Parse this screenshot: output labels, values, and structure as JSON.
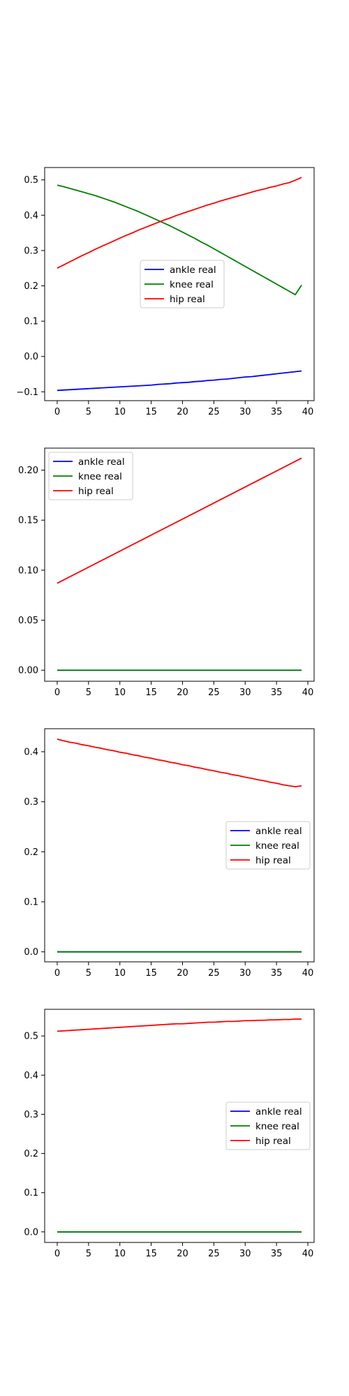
{
  "chart_data": [
    {
      "type": "line",
      "x": {
        "start": 0,
        "end": 39,
        "points": 40
      },
      "xlim": [
        -2,
        41
      ],
      "ylim": [
        -0.125,
        0.535
      ],
      "xticks": [
        0,
        5,
        10,
        15,
        20,
        25,
        30,
        35,
        40
      ],
      "yticks": [
        -0.1,
        0.0,
        0.1,
        0.2,
        0.3,
        0.4,
        0.5
      ],
      "ytick_labels": [
        "−0.1",
        "0.0",
        "0.1",
        "0.2",
        "0.3",
        "0.4",
        "0.5"
      ],
      "legend_position": "center",
      "series": [
        {
          "name": "ankle real",
          "color": "#0000ff",
          "values": [
            -0.096,
            -0.095,
            -0.094,
            -0.093,
            -0.092,
            -0.091,
            -0.09,
            -0.089,
            -0.088,
            -0.087,
            -0.086,
            -0.085,
            -0.084,
            -0.083,
            -0.082,
            -0.081,
            -0.079,
            -0.078,
            -0.077,
            -0.075,
            -0.074,
            -0.073,
            -0.071,
            -0.07,
            -0.068,
            -0.067,
            -0.065,
            -0.064,
            -0.062,
            -0.06,
            -0.058,
            -0.057,
            -0.055,
            -0.053,
            -0.051,
            -0.049,
            -0.047,
            -0.045,
            -0.043,
            -0.041
          ]
        },
        {
          "name": "knee real",
          "color": "#008000",
          "values": [
            0.485,
            0.481,
            0.476,
            0.471,
            0.466,
            0.461,
            0.456,
            0.45,
            0.444,
            0.438,
            0.431,
            0.424,
            0.417,
            0.41,
            0.402,
            0.394,
            0.386,
            0.378,
            0.37,
            0.361,
            0.352,
            0.343,
            0.334,
            0.324,
            0.315,
            0.305,
            0.295,
            0.285,
            0.275,
            0.265,
            0.255,
            0.245,
            0.235,
            0.225,
            0.215,
            0.205,
            0.195,
            0.185,
            0.175,
            0.202
          ]
        },
        {
          "name": "hip real",
          "color": "#ff0000",
          "values": [
            0.25,
            0.259,
            0.268,
            0.277,
            0.286,
            0.294,
            0.303,
            0.311,
            0.319,
            0.327,
            0.335,
            0.343,
            0.35,
            0.358,
            0.365,
            0.372,
            0.379,
            0.386,
            0.392,
            0.399,
            0.405,
            0.411,
            0.417,
            0.423,
            0.429,
            0.434,
            0.44,
            0.445,
            0.45,
            0.455,
            0.46,
            0.465,
            0.47,
            0.474,
            0.479,
            0.483,
            0.488,
            0.492,
            0.499,
            0.507
          ]
        }
      ]
    },
    {
      "type": "line",
      "x": {
        "start": 0,
        "end": 39,
        "points": 40
      },
      "xlim": [
        -2,
        41
      ],
      "ylim": [
        -0.011,
        0.222
      ],
      "xticks": [
        0,
        5,
        10,
        15,
        20,
        25,
        30,
        35,
        40
      ],
      "yticks": [
        0.0,
        0.05,
        0.1,
        0.15,
        0.2
      ],
      "ytick_labels": [
        "0.00",
        "0.05",
        "0.10",
        "0.15",
        "0.20"
      ],
      "legend_position": "top-left",
      "series": [
        {
          "name": "ankle real",
          "color": "#0000ff",
          "values": [
            0.0,
            0.0
          ]
        },
        {
          "name": "knee real",
          "color": "#008000",
          "values": [
            0.0,
            0.0
          ]
        },
        {
          "name": "hip real",
          "color": "#ff0000",
          "values": [
            0.087,
            0.212
          ]
        }
      ]
    },
    {
      "type": "line",
      "x": {
        "start": 0,
        "end": 39,
        "points": 40
      },
      "xlim": [
        -2,
        41
      ],
      "ylim": [
        -0.02,
        0.446
      ],
      "xticks": [
        0,
        5,
        10,
        15,
        20,
        25,
        30,
        35,
        40
      ],
      "yticks": [
        0.0,
        0.1,
        0.2,
        0.3,
        0.4
      ],
      "ytick_labels": [
        "0.0",
        "0.1",
        "0.2",
        "0.3",
        "0.4"
      ],
      "legend_position": "center-right",
      "series": [
        {
          "name": "ankle real",
          "color": "#0000ff",
          "values": [
            0.0,
            0.0
          ]
        },
        {
          "name": "knee real",
          "color": "#008000",
          "values": [
            0.0,
            0.0
          ]
        },
        {
          "name": "hip real",
          "color": "#ff0000",
          "values": [
            0.425,
            0.422,
            0.419,
            0.417,
            0.414,
            0.412,
            0.409,
            0.407,
            0.404,
            0.402,
            0.399,
            0.397,
            0.394,
            0.392,
            0.389,
            0.387,
            0.384,
            0.382,
            0.379,
            0.377,
            0.374,
            0.372,
            0.369,
            0.367,
            0.364,
            0.362,
            0.359,
            0.357,
            0.354,
            0.352,
            0.349,
            0.347,
            0.344,
            0.342,
            0.339,
            0.337,
            0.334,
            0.332,
            0.33,
            0.332
          ]
        }
      ]
    },
    {
      "type": "line",
      "x": {
        "start": 0,
        "end": 39,
        "points": 40
      },
      "xlim": [
        -2,
        41
      ],
      "ylim": [
        -0.027,
        0.568
      ],
      "xticks": [
        0,
        5,
        10,
        15,
        20,
        25,
        30,
        35,
        40
      ],
      "yticks": [
        0.0,
        0.1,
        0.2,
        0.3,
        0.4,
        0.5
      ],
      "ytick_labels": [
        "0.0",
        "0.1",
        "0.2",
        "0.3",
        "0.4",
        "0.5"
      ],
      "legend_position": "center-right",
      "series": [
        {
          "name": "ankle real",
          "color": "#0000ff",
          "values": [
            0.0,
            0.0
          ]
        },
        {
          "name": "knee real",
          "color": "#008000",
          "values": [
            0.0,
            0.0
          ]
        },
        {
          "name": "hip real",
          "color": "#ff0000",
          "values": [
            0.512,
            0.513,
            0.514,
            0.515,
            0.516,
            0.517,
            0.518,
            0.519,
            0.52,
            0.521,
            0.522,
            0.523,
            0.524,
            0.525,
            0.526,
            0.527,
            0.528,
            0.529,
            0.53,
            0.531,
            0.531,
            0.532,
            0.533,
            0.534,
            0.535,
            0.535,
            0.536,
            0.537,
            0.537,
            0.538,
            0.539,
            0.539,
            0.54,
            0.54,
            0.541,
            0.541,
            0.542,
            0.542,
            0.543,
            0.543
          ]
        }
      ]
    }
  ]
}
